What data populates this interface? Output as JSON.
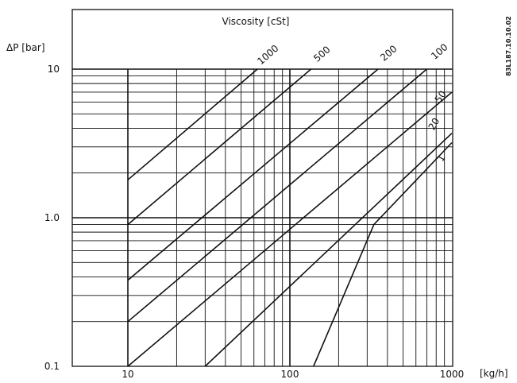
{
  "chart_data": {
    "type": "line",
    "title": "Viscosity [cSt]",
    "ylabel": "ΔP [bar]",
    "xlabel": "[kg/h]",
    "x_scale": "log",
    "y_scale": "log",
    "xlim": [
      5,
      1000
    ],
    "ylim": [
      0.1,
      20
    ],
    "grid_xlim": [
      10,
      1000
    ],
    "grid_ylim": [
      0.1,
      10
    ],
    "x_ticks": [
      {
        "value": 10,
        "label": "10"
      },
      {
        "value": 100,
        "label": "100"
      },
      {
        "value": 1000,
        "label": "1000"
      }
    ],
    "y_ticks": [
      {
        "value": 0.1,
        "label": "0.1"
      },
      {
        "value": 1,
        "label": "1.0"
      },
      {
        "value": 10,
        "label": "10"
      }
    ],
    "grid": true,
    "series": [
      {
        "name": "1000",
        "points": [
          [
            10,
            1.8
          ],
          [
            63,
            10
          ]
        ]
      },
      {
        "name": "500",
        "points": [
          [
            10,
            0.9
          ],
          [
            135,
            10
          ]
        ]
      },
      {
        "name": "200",
        "points": [
          [
            10,
            0.38
          ],
          [
            350,
            10
          ]
        ]
      },
      {
        "name": "100",
        "points": [
          [
            10,
            0.2
          ],
          [
            700,
            10
          ]
        ]
      },
      {
        "name": "50",
        "points": [
          [
            10,
            0.1
          ],
          [
            1000,
            7
          ]
        ]
      },
      {
        "name": "20",
        "points": [
          [
            30,
            0.1
          ],
          [
            1000,
            3.7
          ]
        ]
      },
      {
        "name": "1",
        "points": [
          [
            140,
            0.1
          ],
          [
            330,
            0.9
          ],
          [
            1000,
            3.2
          ]
        ]
      }
    ],
    "annotations": [
      {
        "text": "83L187.10.10.02",
        "position": "top-right",
        "rotated": true
      }
    ]
  }
}
